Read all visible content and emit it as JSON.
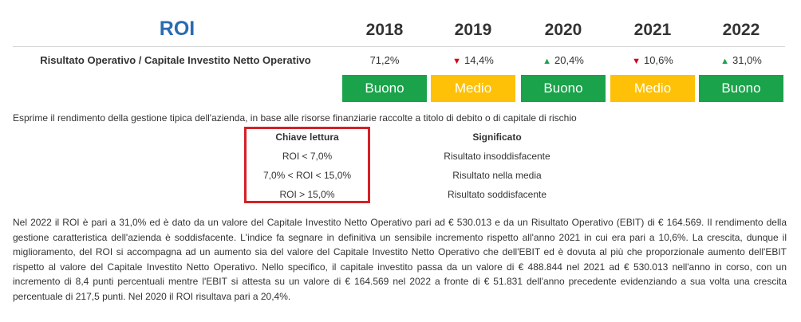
{
  "header": {
    "title": "ROI",
    "years": [
      "2018",
      "2019",
      "2020",
      "2021",
      "2022"
    ]
  },
  "metric": {
    "name": "Risultato Operativo / Capitale Investito Netto Operativo",
    "values": [
      {
        "text": "71,2%",
        "trend": "none"
      },
      {
        "text": "14,4%",
        "trend": "down"
      },
      {
        "text": "20,4%",
        "trend": "up"
      },
      {
        "text": "10,6%",
        "trend": "down"
      },
      {
        "text": "31,0%",
        "trend": "up"
      }
    ],
    "arrows": {
      "up": "▲",
      "down": "▼"
    },
    "ratings": [
      "Buono",
      "Medio",
      "Buono",
      "Medio",
      "Buono"
    ]
  },
  "colors": {
    "title": "#2a6bb0",
    "buono": "#1aa34a",
    "medio": "#fec107",
    "highlight_border": "#d42027",
    "up": "#1aa34a",
    "down": "#d0021b"
  },
  "description": "Esprime il rendimento della gestione tipica dell'azienda, in base alle risorse finanziarie raccolte a titolo di debito o di capitale di rischio",
  "legend": {
    "col1_header": "Chiave lettura",
    "col2_header": "Significato",
    "rows": [
      {
        "key": "ROI < 7,0%",
        "meaning": "Risultato insoddisfacente"
      },
      {
        "key": "7,0% < ROI < 15,0%",
        "meaning": "Risultato nella media"
      },
      {
        "key": "ROI > 15,0%",
        "meaning": "Risultato soddisfacente"
      }
    ]
  },
  "commentary": "Nel 2022 il ROI è pari a 31,0% ed è dato da un valore del Capitale Investito Netto Operativo pari ad € 530.013 e da un Risultato Operativo (EBIT) di € 164.569. Il rendimento della gestione caratteristica dell'azienda è soddisfacente. L'indice fa segnare in definitiva un sensibile incremento rispetto all'anno 2021 in cui era pari a 10,6%. La crescita, dunque il miglioramento, del ROI si accompagna ad un aumento sia del valore del Capitale Investito Netto Operativo che dell'EBIT ed è dovuta al più che proporzionale aumento dell'EBIT rispetto al valore del Capitale Investito Netto Operativo. Nello specifico, il capitale investito passa da un valore di € 488.844 nel 2021 ad € 530.013 nell'anno in corso, con un incremento di 8,4 punti percentuali mentre l'EBIT si attesta su un valore di € 164.569 nel 2022 a fronte di € 51.831 dell'anno precedente evidenziando a sua volta una crescita percentuale di 217,5 punti. Nel 2020 il ROI risultava pari a 20,4%."
}
